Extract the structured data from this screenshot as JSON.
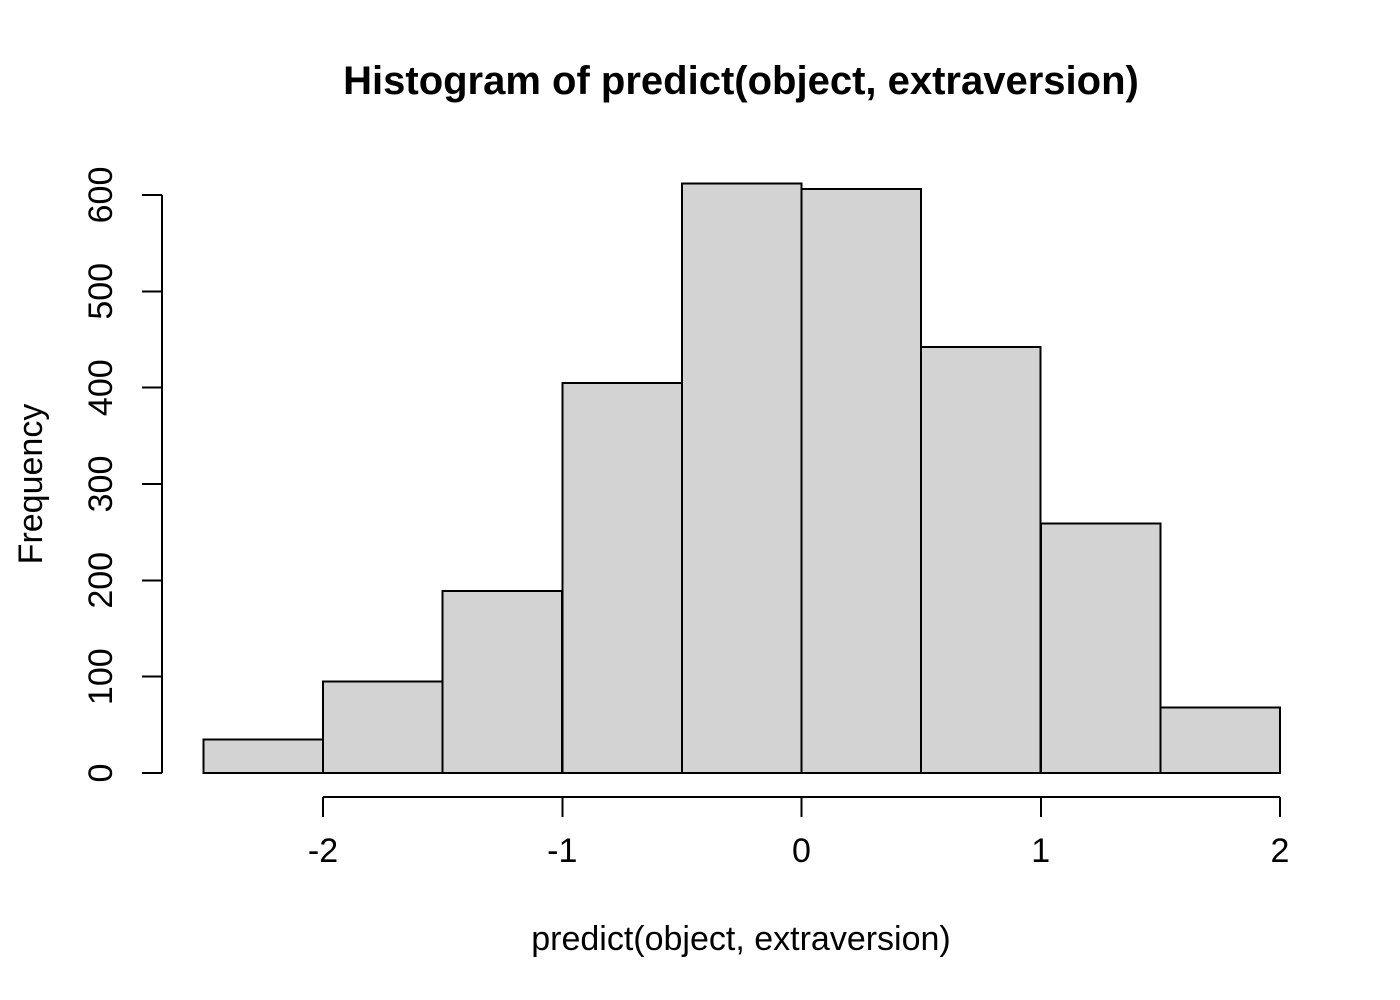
{
  "figure": {
    "kind": "r-base-histogram",
    "background": "#ffffff"
  },
  "chart_data": {
    "type": "bar",
    "subtype": "histogram",
    "title": "Histogram of predict(object, extraversion)",
    "xlabel": "predict(object, extraversion)",
    "ylabel": "Frequency",
    "bin_edges": [
      -2.5,
      -2.0,
      -1.5,
      -1.0,
      -0.5,
      0.0,
      0.5,
      1.0,
      1.5,
      2.0
    ],
    "counts": [
      35,
      95,
      189,
      405,
      612,
      606,
      442,
      259,
      68
    ],
    "x_ticks": [
      -2,
      -1,
      0,
      1,
      2
    ],
    "x_tick_labels": [
      "-2",
      "-1",
      "0",
      "1",
      "2"
    ],
    "y_ticks": [
      0,
      100,
      200,
      300,
      400,
      500,
      600
    ],
    "y_tick_labels": [
      "0",
      "100",
      "200",
      "300",
      "400",
      "500",
      "600"
    ],
    "xlim": [
      -2.5,
      2.0
    ],
    "ylim": [
      0,
      612
    ],
    "grid": false,
    "legend": null,
    "colors": {
      "bar_fill": "#d3d3d3",
      "bar_stroke": "#000000",
      "axis": "#000000",
      "text": "#000000",
      "background": "#ffffff"
    }
  }
}
